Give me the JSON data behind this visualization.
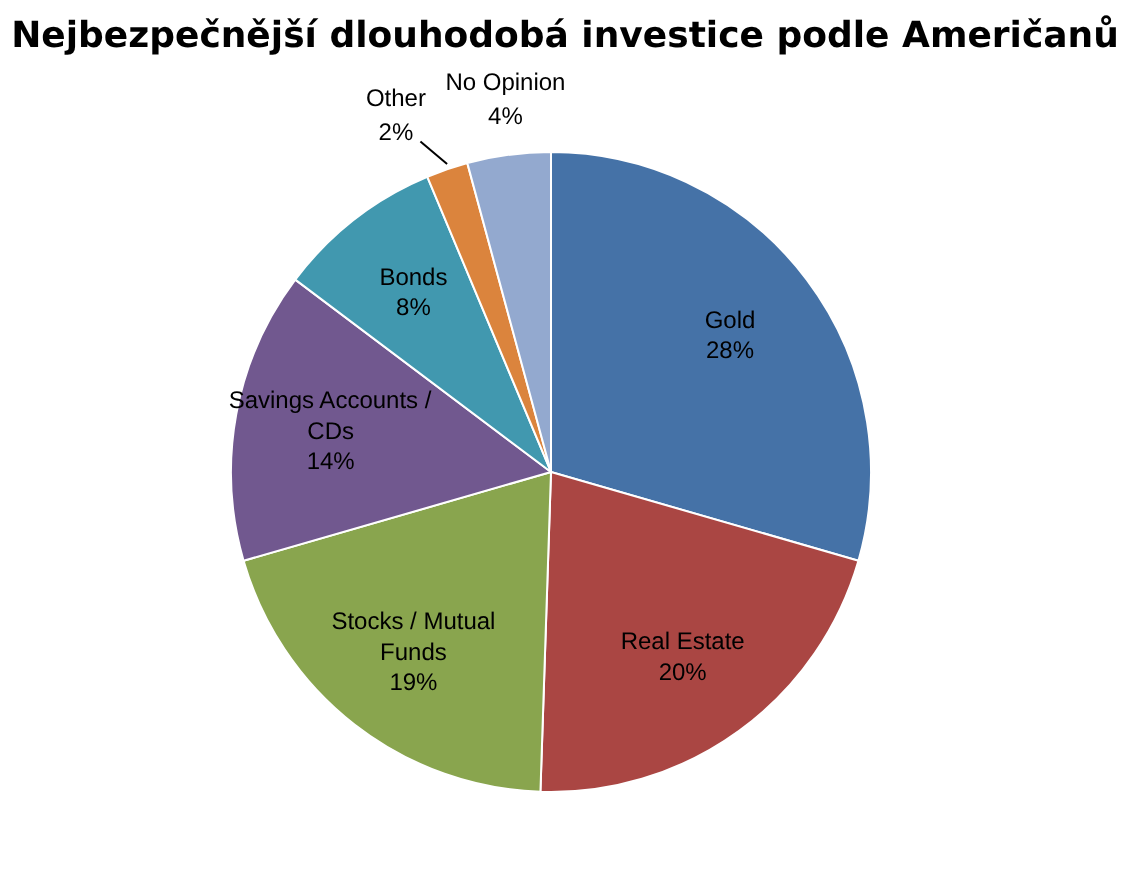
{
  "chart_data": {
    "type": "pie",
    "title": "Nejbezpečnější dlouhodobá investice podle Američanů",
    "categories": [
      "Gold",
      "Real Estate",
      "Stocks / Mutual Funds",
      "Savings Accounts / CDs",
      "Bonds",
      "Other",
      "No Opinion"
    ],
    "values": [
      28,
      20,
      19,
      14,
      8,
      2,
      4
    ],
    "colors": [
      "#4572a7",
      "#aa4643",
      "#89a54e",
      "#71588f",
      "#4198af",
      "#db843d",
      "#93a9cf"
    ],
    "value_labels": [
      "28%",
      "20%",
      "19%",
      "14%",
      "8%",
      "2%",
      "4%"
    ]
  }
}
